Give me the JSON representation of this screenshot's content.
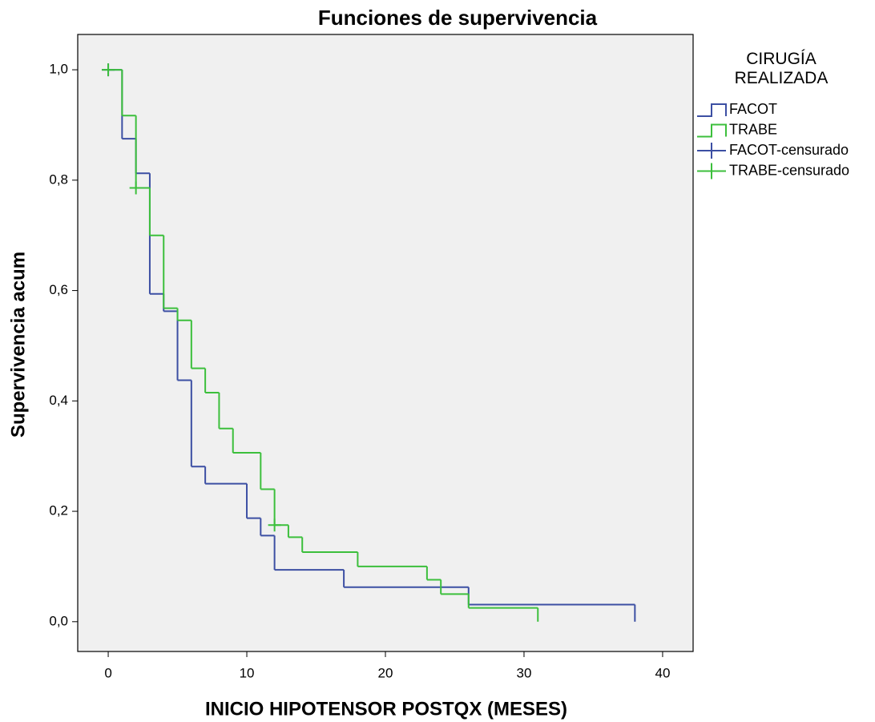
{
  "chart_data": {
    "type": "line",
    "step": "post",
    "title": "Funciones de supervivencia",
    "x_label": "INICIO HIPOTENSOR POSTQX (MESES)",
    "y_label": "Supervivencia acum",
    "legend_title": "CIRUGÍA REALIZADA",
    "legend": "right",
    "xlim": [
      -2.2,
      42.2
    ],
    "xticks": [
      0,
      10,
      20,
      30,
      40
    ],
    "ylim": [
      -0.054,
      1.064
    ],
    "yticks": [
      {
        "value": 0,
        "label": "0,0"
      },
      {
        "value": 0.2,
        "label": "0,2"
      },
      {
        "value": 0.4,
        "label": "0,4"
      },
      {
        "value": 0.6,
        "label": "0,6"
      },
      {
        "value": 0.8,
        "label": "0,8"
      },
      {
        "value": 1,
        "label": "1,0"
      }
    ],
    "series": [
      {
        "name": "FACOT",
        "color": "#3c4fa3",
        "mark": "step",
        "x": [
          0,
          1,
          2,
          3,
          4,
          5,
          6,
          7,
          10,
          11,
          12,
          17,
          26,
          38
        ],
        "values": [
          1,
          0.875,
          0.8125,
          0.594,
          0.5625,
          0.4375,
          0.281,
          0.25,
          0.1875,
          0.156,
          0.094,
          0.0625,
          0.031,
          0
        ]
      },
      {
        "name": "TRABE",
        "color": "#3cbf3c",
        "mark": "step",
        "x": [
          0,
          1,
          2,
          3,
          4,
          5,
          6,
          7,
          8,
          9,
          11,
          12,
          13,
          14,
          18,
          23,
          24,
          26,
          31
        ],
        "values": [
          1,
          0.917,
          0.786,
          0.7,
          0.568,
          0.546,
          0.459,
          0.415,
          0.35,
          0.306,
          0.24,
          0.175,
          0.153,
          0.126,
          0.1,
          0.076,
          0.05,
          0.025,
          0
        ]
      },
      {
        "name": "FACOT-censurado",
        "color": "#3c4fa3",
        "mark": "cross",
        "x": [
          0
        ],
        "values": [
          1
        ]
      },
      {
        "name": "TRABE-censurado",
        "color": "#3cbf3c",
        "mark": "cross",
        "x": [
          0,
          2,
          12
        ],
        "values": [
          1,
          0.786,
          0.175
        ]
      }
    ]
  }
}
